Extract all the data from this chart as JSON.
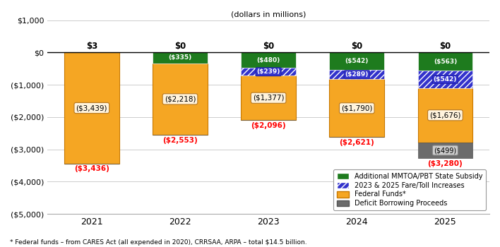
{
  "years": [
    "2021",
    "2022",
    "2023",
    "2024",
    "2025"
  ],
  "federal_funds": [
    -3439,
    -2218,
    -1377,
    -1790,
    -1676
  ],
  "state_subsidy": [
    0,
    -335,
    -480,
    -542,
    -563
  ],
  "fare_toll": [
    0,
    0,
    -239,
    -289,
    -542
  ],
  "deficit_borrowing": [
    0,
    0,
    0,
    0,
    -499
  ],
  "top_labels": [
    "$3",
    "$0",
    "$0",
    "$0",
    "$0"
  ],
  "total_labels": [
    "($3,436)",
    "($2,553)",
    "($2,096)",
    "($2,621)",
    "($3,280)"
  ],
  "federal_labels": [
    "($3,439)",
    "($2,218)",
    "($1,377)",
    "($1,790)",
    "($1,676)"
  ],
  "state_labels": [
    "",
    "($335)",
    "($480)",
    "($542)",
    "($563)"
  ],
  "fare_labels": [
    "",
    "",
    "($239)",
    "($289)",
    "($542)"
  ],
  "deficit_labels": [
    "",
    "",
    "",
    "",
    "($499)"
  ],
  "colors": {
    "federal": "#F5A623",
    "federal_edge": "#C87800",
    "state": "#1E7B1E",
    "fare_fill": "#3333CC",
    "fare_hatch": "white",
    "deficit": "#6B6B6B"
  },
  "title": "(dollars in millions)",
  "footnote": "* Federal funds – from CARES Act (all expended in 2020), CRRSAA, ARPA – total $14.5 billion.",
  "ylim": [
    -5000,
    1000
  ],
  "yticks": [
    1000,
    0,
    -1000,
    -2000,
    -3000,
    -4000,
    -5000
  ],
  "ytick_labels": [
    "$1,000",
    "$0",
    "($1,000)",
    "($2,000)",
    "($3,000)",
    "($4,000)",
    "($5,000)"
  ],
  "bar_width": 0.62,
  "fed_box_face": "#FFF3DC",
  "fed_box_edge": "#B87820",
  "def_box_face": "#CCCCCC",
  "def_box_edge": "#888888"
}
